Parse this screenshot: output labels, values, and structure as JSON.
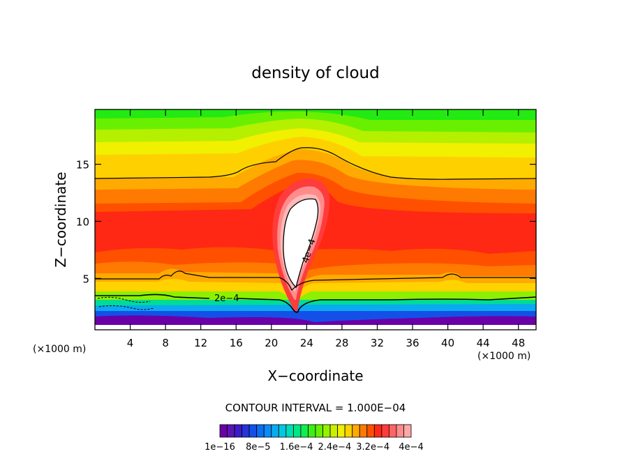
{
  "chart_data": {
    "type": "heatmap",
    "title": "density of cloud",
    "xlabel": "X−coordinate",
    "ylabel": "Z−coordinate",
    "x_units_label": "(×1000 m)",
    "y_units_label": "(×1000 m)",
    "xlim": [
      0,
      50
    ],
    "ylim": [
      0.5,
      19.8
    ],
    "x_ticks": [
      4,
      8,
      12,
      16,
      20,
      24,
      28,
      32,
      36,
      40,
      44,
      48
    ],
    "x_tick_labels": [
      "4",
      "8",
      "12",
      "16",
      "20",
      "24",
      "28",
      "32",
      "36",
      "40",
      "44",
      "48"
    ],
    "y_ticks": [
      5,
      10,
      15
    ],
    "y_tick_labels": [
      "5",
      "10",
      "15"
    ],
    "contour_interval_text": "CONTOUR INTERVAL = 1.000E−04",
    "contour_labels": [
      {
        "text": "2e−4",
        "x": 13.8,
        "z": 2.9,
        "rotate": 0
      },
      {
        "text": "4e−4",
        "x": 23.3,
        "z": 7.6,
        "rotate": -72
      }
    ],
    "colorbar": {
      "colors": [
        "#6a00a8",
        "#5a14b4",
        "#3c1cc8",
        "#2434d8",
        "#1450e8",
        "#0c6cf4",
        "#0a8cf8",
        "#0aaaf0",
        "#00c8e0",
        "#00dcb4",
        "#00e684",
        "#14ec50",
        "#3cf014",
        "#64f000",
        "#96f000",
        "#c8f000",
        "#f0f000",
        "#ffd200",
        "#ffaa00",
        "#ff7a00",
        "#ff5000",
        "#ff2814",
        "#ff3c3c",
        "#ff6464",
        "#ff8c8c",
        "#ffa8a8"
      ],
      "tick_labels": [
        "1e−16",
        "8e−5",
        "1.6e−4",
        "2.4e−4",
        "3.2e−4",
        "4e−4"
      ]
    },
    "isopleth_levels": [
      0.0002,
      0.00032,
      0.00036,
      0.0004
    ]
  }
}
